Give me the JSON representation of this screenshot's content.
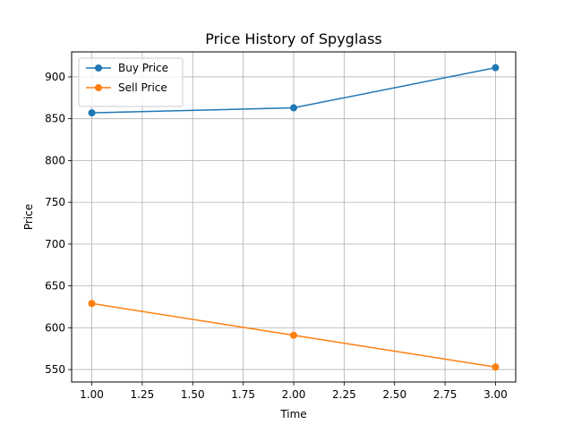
{
  "chart_data": {
    "type": "line",
    "title": "Price History of Spyglass",
    "xlabel": "Time",
    "ylabel": "Price",
    "x": [
      1,
      2,
      3
    ],
    "series": [
      {
        "name": "Buy Price",
        "values": [
          857,
          863,
          911
        ],
        "color": "#1f77b4",
        "marker": "circle"
      },
      {
        "name": "Sell Price",
        "values": [
          629,
          591,
          553
        ],
        "color": "#ff7f0e",
        "marker": "circle"
      }
    ],
    "xlim": [
      0.9,
      3.1
    ],
    "ylim": [
      535.1,
      929.9
    ],
    "xticks": [
      "1.00",
      "1.25",
      "1.50",
      "1.75",
      "2.00",
      "2.25",
      "2.50",
      "2.75",
      "3.00"
    ],
    "yticks": [
      "550",
      "600",
      "650",
      "700",
      "750",
      "800",
      "850",
      "900"
    ],
    "grid": true,
    "legend_position": "top-left"
  }
}
